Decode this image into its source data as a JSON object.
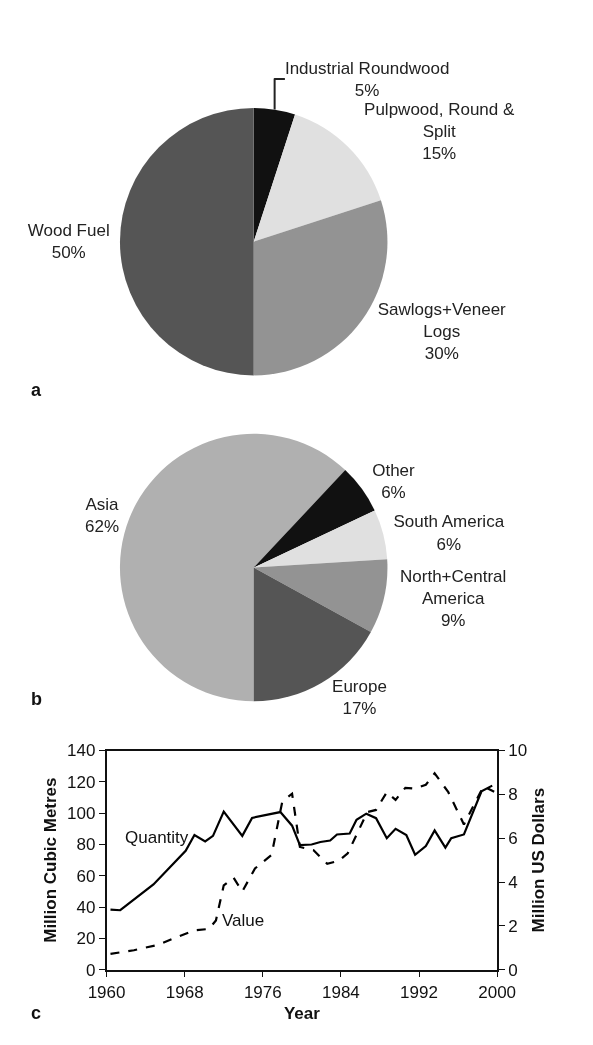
{
  "chart_data": [
    {
      "type": "pie",
      "categories": [
        "Industrial Roundwood",
        "Pulpwood, Round &\nSplit",
        "Sawlogs+Veneer\nLogs",
        "Wood Fuel"
      ],
      "values": [
        5,
        15,
        30,
        50
      ],
      "colors": [
        "#111111",
        "#e0e0e0",
        "#939393",
        "#555555"
      ],
      "value_labels": [
        "5%",
        "15%",
        "30%",
        "50%"
      ],
      "annotations": [
        "a"
      ]
    },
    {
      "type": "pie",
      "categories": [
        "Asia",
        "Other",
        "South America",
        "North+Central\nAmerica",
        "Europe"
      ],
      "values": [
        62,
        6,
        6,
        9,
        17
      ],
      "colors": [
        "#b0b0b0",
        "#111111",
        "#e0e0e0",
        "#939393",
        "#555555"
      ],
      "value_labels": [
        "62%",
        "6%",
        "6%",
        "9%",
        "17%"
      ],
      "annotations": [
        "b"
      ]
    },
    {
      "type": "line",
      "xlabel": "Year",
      "ylabel": "Million Cubic Metres",
      "y2label": "Million US Dollars",
      "xlim": [
        1960,
        2000
      ],
      "xticks": [
        1960,
        1968,
        1976,
        1984,
        1992,
        2000
      ],
      "ylim": [
        0,
        140
      ],
      "yticks": [
        0,
        20,
        40,
        60,
        80,
        100,
        120,
        140
      ],
      "y2lim": [
        0,
        10
      ],
      "y2ticks": [
        0,
        2,
        4,
        6,
        8,
        10
      ],
      "marker": "none",
      "annotations": [
        "c"
      ],
      "series": [
        {
          "name": "Quantity",
          "color": "#000000",
          "line_style": "solid",
          "x": [
            1960.4,
            1961.4,
            1964.8,
            1968.1,
            1969,
            1970.1,
            1970.9,
            1972,
            1973.9,
            1974.9,
            1977.8,
            1979,
            1979.8,
            1981,
            1981.9,
            1982.9,
            1983.6,
            1984.9,
            1985.6,
            1986.6,
            1987.6,
            1988.7,
            1989.6,
            1990.7,
            1991.6,
            1992.7,
            1993.6,
            1994.7,
            1995.3,
            1996.6,
            1998.4,
            1999.5
          ],
          "values": [
            38.4,
            38,
            54.5,
            76,
            86,
            82,
            85.5,
            101,
            85.5,
            97,
            100.7,
            92,
            79.6,
            80,
            81.6,
            82.5,
            86.4,
            87,
            95.8,
            99.7,
            96.8,
            84,
            90,
            86,
            73.4,
            79,
            89,
            78,
            84,
            86.4,
            114,
            117.6
          ]
        },
        {
          "name": "Value",
          "color": "#000000",
          "line_style": "dashed",
          "axis": "y2",
          "x": [
            1960.4,
            1962.8,
            1965.3,
            1966.8,
            1969,
            1970.5,
            1971.2,
            1972,
            1973,
            1973.9,
            1975.2,
            1976.9,
            1978,
            1979,
            1979.8,
            1981.2,
            1982.6,
            1983.8,
            1984.7,
            1986.7,
            1987.6,
            1988.7,
            1989.6,
            1990.6,
            1991.6,
            1992.7,
            1993.6,
            1995,
            1996.6,
            1998.6,
            1999.7
          ],
          "values": [
            0.72,
            0.89,
            1.14,
            1.42,
            1.8,
            1.86,
            2.25,
            3.85,
            4.2,
            3.57,
            4.62,
            5.24,
            7.68,
            8.03,
            5.6,
            5.45,
            4.83,
            4.97,
            5.31,
            7.19,
            7.29,
            8.1,
            7.75,
            8.3,
            8.26,
            8.44,
            8.96,
            8.1,
            6.63,
            8.37,
            8.12
          ]
        }
      ]
    }
  ]
}
